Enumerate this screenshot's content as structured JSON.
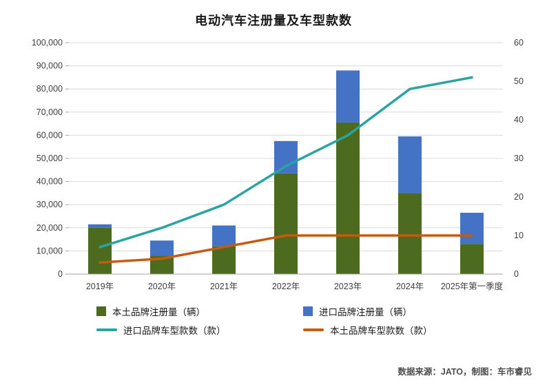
{
  "title": "电动汽车注册量及车型款数",
  "source_note": "数据来源：JATO，制图：车市睿见",
  "chart_data": {
    "type": "combo",
    "subtype": "stacked-bar + line",
    "categories": [
      "2019年",
      "2020年",
      "2021年",
      "2022年",
      "2023年",
      "2024年",
      "2025年第一季度"
    ],
    "bar_series": [
      {
        "name": "本土品牌注册量（辆）",
        "kind": "stacked-bar",
        "axis": "left",
        "color": "#4d6b1f",
        "values": [
          20000,
          8000,
          12000,
          43500,
          65500,
          35000,
          13000
        ]
      },
      {
        "name": "进口品牌注册量（辆）",
        "kind": "stacked-bar",
        "axis": "left",
        "color": "#4472c4",
        "values": [
          1500,
          6500,
          9000,
          14000,
          22500,
          24500,
          13500
        ]
      }
    ],
    "line_series": [
      {
        "name": "进口品牌车型款数（款）",
        "kind": "line",
        "axis": "right",
        "color": "#2aa4a0",
        "values": [
          7,
          12,
          18,
          28,
          36,
          48,
          51
        ]
      },
      {
        "name": "本土品牌车型款数（款）",
        "kind": "line",
        "axis": "right",
        "color": "#c55a11",
        "values": [
          3,
          4,
          7,
          10,
          10,
          10,
          10
        ]
      }
    ],
    "left_axis": {
      "min": 0,
      "max": 100000,
      "step": 10000,
      "format": "thousands-comma"
    },
    "right_axis": {
      "min": 0,
      "max": 60,
      "step": 10
    },
    "grid": true,
    "legend_position": "bottom"
  }
}
